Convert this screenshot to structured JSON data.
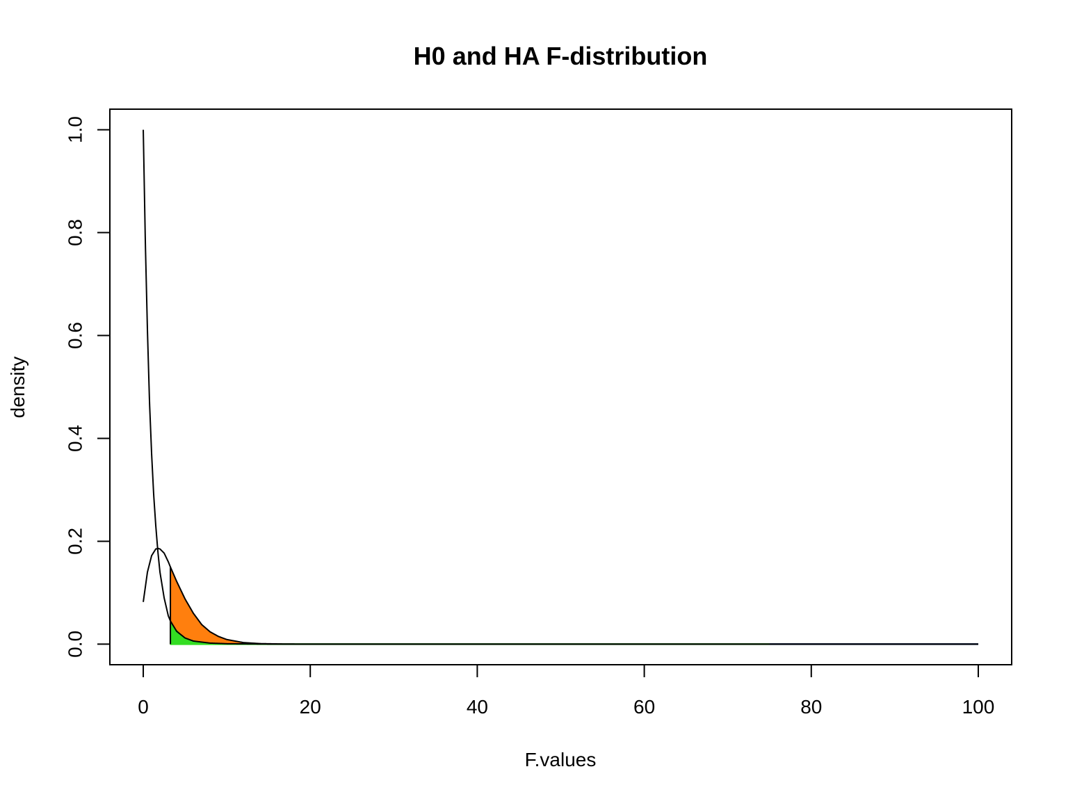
{
  "chart_data": {
    "type": "line",
    "title": "H0 and HA F-distribution",
    "xlabel": "F.values",
    "ylabel": "density",
    "xlim": [
      -4,
      104
    ],
    "ylim": [
      -0.04,
      1.04
    ],
    "x_ticks": [
      0,
      20,
      40,
      60,
      80,
      100
    ],
    "y_ticks": [
      0.0,
      0.2,
      0.4,
      0.6,
      0.8,
      1.0
    ],
    "x_tick_labels": [
      "0",
      "20",
      "40",
      "60",
      "80",
      "100"
    ],
    "y_tick_labels": [
      "0.0",
      "0.2",
      "0.4",
      "0.6",
      "0.8",
      "1.0"
    ],
    "grid": false,
    "critical_value": 3.25,
    "series": [
      {
        "role": "H0 density",
        "color": "#000000",
        "x": [
          0,
          0.25,
          0.5,
          0.75,
          1.0,
          1.25,
          1.5,
          1.75,
          2.0,
          2.5,
          3.0,
          3.25,
          4.0,
          5.0,
          6.0,
          8.0,
          10.0,
          15.0,
          20.0,
          100.0
        ],
        "y": [
          1.0,
          0.78,
          0.61,
          0.47,
          0.37,
          0.29,
          0.23,
          0.18,
          0.14,
          0.09,
          0.055,
          0.045,
          0.025,
          0.012,
          0.006,
          0.002,
          0.0008,
          0.0001,
          0.0,
          0.0
        ]
      },
      {
        "role": "HA density",
        "color": "#000000",
        "x": [
          0,
          0.5,
          1.0,
          1.5,
          1.8,
          2.0,
          2.5,
          3.0,
          3.25,
          4.0,
          5.0,
          6.0,
          7.0,
          8.0,
          9.0,
          10.0,
          12.0,
          14.0,
          17.0,
          20.0,
          100.0
        ],
        "y": [
          0.082,
          0.14,
          0.172,
          0.185,
          0.186,
          0.185,
          0.177,
          0.16,
          0.15,
          0.122,
          0.088,
          0.06,
          0.038,
          0.024,
          0.015,
          0.009,
          0.003,
          0.001,
          0.0002,
          0.0,
          0.0
        ]
      }
    ],
    "shaded_regions": [
      {
        "role": "power area",
        "from": 3.25,
        "to": 17,
        "under": "HA density",
        "color": "#ff7f0e"
      },
      {
        "role": "alpha area",
        "from": 3.25,
        "to": 75,
        "under": "H0 density",
        "color": "#33dd22"
      }
    ],
    "baseline_segments": [
      {
        "from": 3.25,
        "to": 75,
        "color": "#33dd22"
      },
      {
        "from": 75,
        "to": 100,
        "color": "#1f4fb4"
      }
    ]
  }
}
